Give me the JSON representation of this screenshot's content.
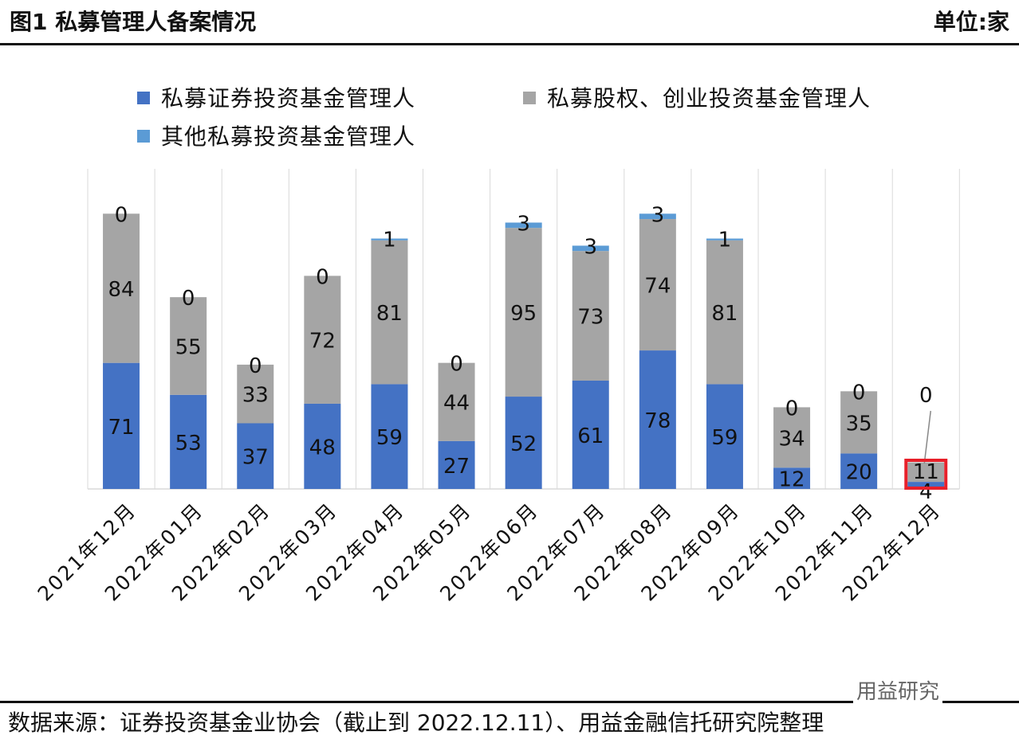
{
  "header": {
    "title": "图1 私募管理人备案情况",
    "unit": "单位:家"
  },
  "footer": {
    "source": "数据来源：证券投资基金业协会（截止到 2022.12.11）、用益金融信托研究院整理",
    "watermark": "用益研究"
  },
  "chart_data": {
    "type": "bar",
    "stacked": true,
    "grid": "vertical category separators",
    "legend": "top",
    "categories": [
      "2021年12月",
      "2022年01月",
      "2022年02月",
      "2022年03月",
      "2022年04月",
      "2022年05月",
      "2022年06月",
      "2022年07月",
      "2022年08月",
      "2022年09月",
      "2022年10月",
      "2022年11月",
      "2022年12月"
    ],
    "series": [
      {
        "name": "私募证券投资基金管理人",
        "color": "#4472C4",
        "values": [
          71,
          53,
          37,
          48,
          59,
          27,
          52,
          61,
          78,
          59,
          12,
          20,
          4
        ]
      },
      {
        "name": "私募股权、创业投资基金管理人",
        "color": "#A5A5A5",
        "values": [
          84,
          55,
          33,
          72,
          81,
          44,
          95,
          73,
          74,
          81,
          34,
          35,
          11
        ]
      },
      {
        "name": "其他私募投资基金管理人",
        "color": "#5B9BD5",
        "values": [
          0,
          0,
          0,
          0,
          1,
          0,
          3,
          3,
          3,
          1,
          0,
          0,
          0
        ]
      }
    ],
    "highlight": {
      "category": "2022年12月",
      "color": "#E8202A"
    }
  }
}
